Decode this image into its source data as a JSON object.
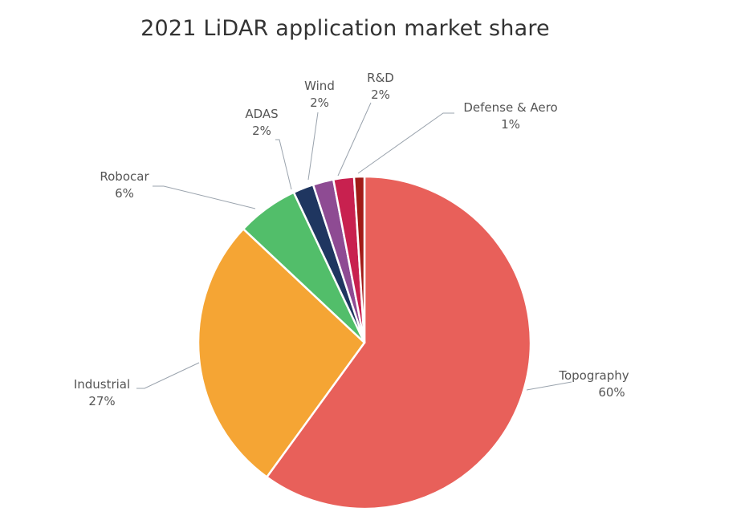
{
  "chart_data": {
    "type": "pie",
    "title": "2021 LiDAR application market share",
    "slices": [
      {
        "name": "Topography",
        "value": 60,
        "label": "60%",
        "color": "#E8605A"
      },
      {
        "name": "Industrial",
        "value": 27,
        "label": "27%",
        "color": "#F5A534"
      },
      {
        "name": "Robocar",
        "value": 6,
        "label": "6%",
        "color": "#52BE6A"
      },
      {
        "name": "ADAS",
        "value": 2,
        "label": "2%",
        "color": "#1F3660"
      },
      {
        "name": "Wind",
        "value": 2,
        "label": "2%",
        "color": "#8E4B93"
      },
      {
        "name": "R&D",
        "value": 2,
        "label": "2%",
        "color": "#C8214F"
      },
      {
        "name": "Defense & Aero",
        "value": 1,
        "label": "1%",
        "color": "#A11B17"
      }
    ]
  }
}
